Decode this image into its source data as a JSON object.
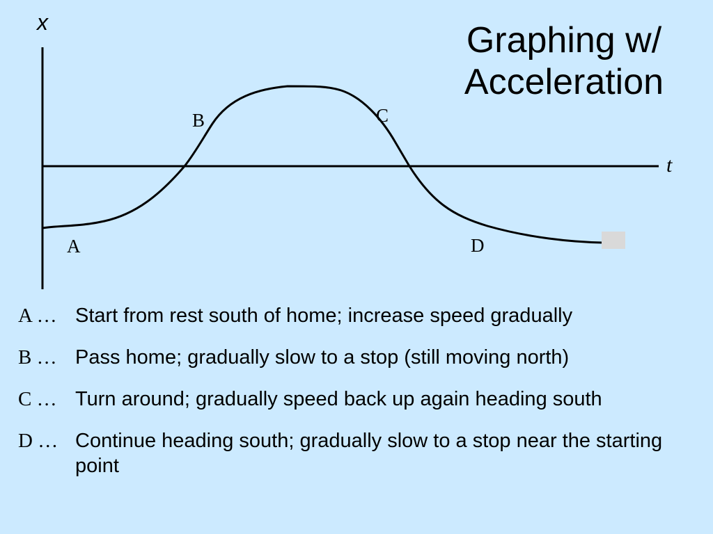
{
  "title": {
    "line1": "Graphing w/",
    "line2": "Acceleration"
  },
  "graph": {
    "x_axis_label": "x",
    "t_axis_label": "t",
    "point_labels": [
      "A",
      "B",
      "C",
      "D"
    ]
  },
  "notes": [
    {
      "letter": "A",
      "ellipsis": "…",
      "text": "Start from rest south of home; increase speed gradually"
    },
    {
      "letter": "B",
      "ellipsis": "…",
      "text": "Pass home; gradually slow to a stop (still moving north)"
    },
    {
      "letter": "C",
      "ellipsis": "…",
      "text": "Turn around; gradually speed back up again heading south"
    },
    {
      "letter": "D",
      "ellipsis": "…",
      "text": "Continue heading south; gradually slow to a stop near the starting point"
    }
  ],
  "colors": {
    "background": "#cceaff",
    "line": "#000000",
    "end_marker": "#d9d9d9"
  }
}
